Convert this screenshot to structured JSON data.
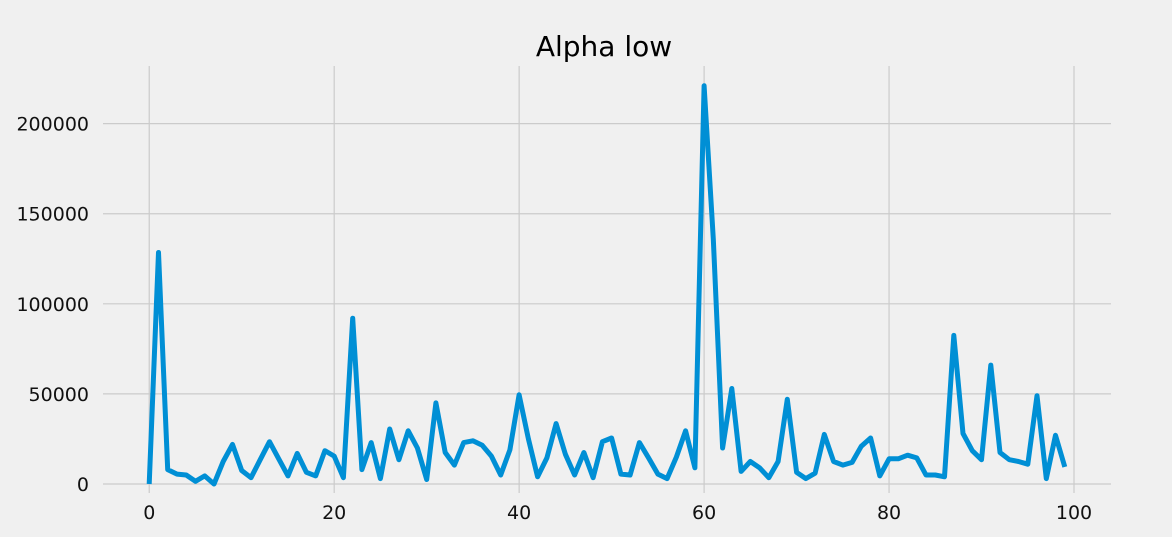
{
  "chart_data": {
    "type": "line",
    "title": "Alpha low",
    "xlabel": "",
    "ylabel": "",
    "xlim": [
      -5,
      104
    ],
    "ylim": [
      -5000,
      232000
    ],
    "xticks": [
      0,
      20,
      40,
      60,
      80,
      100
    ],
    "xtick_labels": [
      "0",
      "20",
      "40",
      "60",
      "80",
      "100"
    ],
    "yticks": [
      0,
      50000,
      100000,
      150000,
      200000
    ],
    "ytick_labels": [
      "0",
      "50000",
      "100000",
      "150000",
      "200000"
    ],
    "grid": true,
    "line_color": "#008fd5",
    "series": [
      {
        "x": [
          0,
          1,
          2,
          3,
          4,
          5,
          6,
          7,
          8,
          9,
          10,
          11,
          12,
          13,
          14,
          15,
          16,
          17,
          18,
          19,
          20,
          21,
          22,
          23,
          24,
          25,
          26,
          27,
          28,
          29,
          30,
          31,
          32,
          33,
          34,
          35,
          36,
          37,
          38,
          39,
          40,
          41,
          42,
          43,
          44,
          45,
          46,
          47,
          48,
          49,
          50,
          51,
          52,
          53,
          54,
          55,
          56,
          57,
          58,
          59,
          60,
          61,
          62,
          63,
          64,
          65,
          66,
          67,
          68,
          69,
          70,
          71,
          72,
          73,
          74,
          75,
          76,
          77,
          78,
          79,
          80,
          81,
          82,
          83,
          84,
          85,
          86,
          87,
          88,
          89,
          90,
          91,
          92,
          93,
          94,
          95,
          96,
          97,
          98,
          99
        ],
        "values": [
          0,
          128500,
          8000,
          5500,
          5000,
          1500,
          4500,
          0,
          12500,
          22000,
          7500,
          3500,
          13500,
          23500,
          14000,
          4500,
          17000,
          6500,
          4500,
          18500,
          15500,
          3500,
          92000,
          8000,
          23000,
          3000,
          30500,
          13500,
          29500,
          20000,
          2500,
          45000,
          17500,
          10500,
          23000,
          24000,
          21500,
          15500,
          5000,
          19000,
          49500,
          25000,
          4000,
          14500,
          33500,
          16500,
          5000,
          17500,
          3500,
          23500,
          25500,
          5500,
          5000,
          23000,
          14500,
          5500,
          3000,
          15000,
          29500,
          9000,
          221000,
          136000,
          20000,
          53000,
          7000,
          12500,
          9000,
          3500,
          12500,
          47000,
          6500,
          3000,
          6000,
          27500,
          12500,
          10500,
          12000,
          21000,
          25500,
          4500,
          14000,
          14000,
          16000,
          14500,
          5000,
          5000,
          4000,
          82500,
          28000,
          18500,
          13500,
          66000,
          17500,
          13500,
          12500,
          11000,
          49000,
          3000,
          27000,
          9500
        ]
      }
    ]
  }
}
